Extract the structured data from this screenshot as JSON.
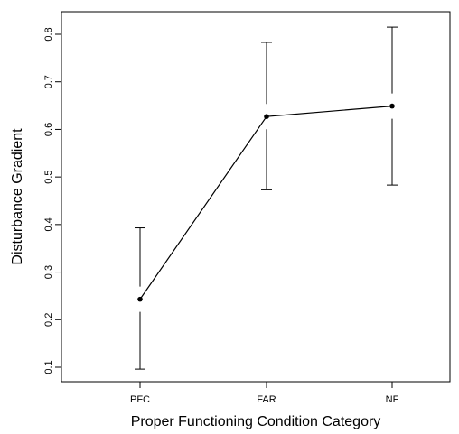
{
  "chart_data": {
    "type": "line",
    "title": "",
    "xlabel": "Proper Functioning Condition Category",
    "ylabel": "Disturbance Gradient",
    "categories": [
      "PFC",
      "FAR",
      "NF"
    ],
    "series": [
      {
        "values": [
          0.243,
          0.627,
          0.649
        ],
        "lower": [
          0.096,
          0.473,
          0.483
        ],
        "upper": [
          0.393,
          0.783,
          0.815
        ]
      }
    ],
    "yticks": [
      0.1,
      0.2,
      0.3,
      0.4,
      0.5,
      0.6,
      0.7,
      0.8
    ],
    "ylim": [
      0.065,
      0.845
    ],
    "grid": false,
    "legend": "none"
  }
}
